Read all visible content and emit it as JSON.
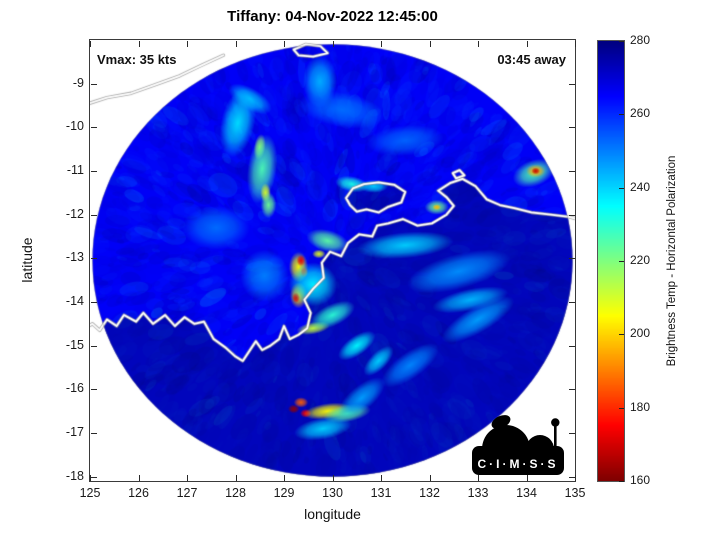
{
  "header": {
    "title": "Tiffany: 04-Nov-2022 12:45:00"
  },
  "annotations": {
    "vmax": "Vmax: 35 kts",
    "eta": "03:45 away"
  },
  "logo": {
    "name": "CIMSS",
    "text": "C·I·M·S·S"
  },
  "chart_data": {
    "type": "heatmap",
    "title": "Tiffany: 04-Nov-2022 12:45:00",
    "xlabel": "longitude",
    "ylabel": "latitude",
    "xlim": [
      125,
      135
    ],
    "ylim": [
      -18.1,
      -8.0
    ],
    "xticks": [
      125,
      126,
      127,
      128,
      129,
      130,
      131,
      132,
      133,
      134,
      135
    ],
    "yticks": [
      -18,
      -17,
      -16,
      -15,
      -14,
      -13,
      -12,
      -11,
      -10,
      -9
    ],
    "grid": false,
    "colorbar": {
      "label": "Brightness Temp - Horizontal Polarization",
      "range": [
        160,
        280
      ],
      "ticks": [
        160,
        180,
        200,
        220,
        240,
        260,
        280
      ],
      "colormap": "jet",
      "position": "right"
    },
    "scan_circle": {
      "center_lon": 130.0,
      "center_lat": -13.05,
      "radius_deg": 4.95
    },
    "background_temp_k": 266,
    "texture": {
      "seed": 42,
      "count": 2600,
      "spread_k": 18,
      "streaks": true
    },
    "feature_format": "[lon, lat, temp_k, rx_deg, ry_deg, rot_deg]",
    "features": [
      [
        128.05,
        -9.9,
        238,
        0.35,
        0.8,
        12
      ],
      [
        128.5,
        -10.45,
        216,
        0.12,
        0.3,
        8
      ],
      [
        128.55,
        -10.95,
        226,
        0.3,
        0.8,
        8
      ],
      [
        128.62,
        -11.5,
        210,
        0.11,
        0.22,
        0
      ],
      [
        128.68,
        -11.78,
        222,
        0.16,
        0.3,
        0
      ],
      [
        128.3,
        -9.35,
        242,
        0.5,
        0.25,
        30
      ],
      [
        129.74,
        -8.95,
        244,
        0.35,
        0.6,
        0
      ],
      [
        130.2,
        -9.6,
        252,
        0.9,
        0.4,
        10
      ],
      [
        131.5,
        -10.3,
        253,
        0.8,
        0.35,
        -5
      ],
      [
        130.4,
        -11.3,
        232,
        0.35,
        0.18,
        10
      ],
      [
        130.85,
        -11.35,
        240,
        0.3,
        0.15,
        0
      ],
      [
        132.15,
        -11.83,
        222,
        0.25,
        0.17,
        0
      ],
      [
        132.15,
        -11.83,
        196,
        0.09,
        0.07,
        0
      ],
      [
        134.15,
        -11.05,
        226,
        0.45,
        0.3,
        -20
      ],
      [
        134.19,
        -11.0,
        195,
        0.2,
        0.15,
        0
      ],
      [
        134.19,
        -11.0,
        168,
        0.09,
        0.08,
        0
      ],
      [
        129.9,
        -12.6,
        224,
        0.45,
        0.25,
        15
      ],
      [
        129.72,
        -12.9,
        208,
        0.14,
        0.1,
        0
      ],
      [
        129.3,
        -13.2,
        205,
        0.2,
        0.35,
        0
      ],
      [
        129.35,
        -13.05,
        172,
        0.09,
        0.13,
        0
      ],
      [
        129.42,
        -13.32,
        182,
        0.08,
        0.12,
        0
      ],
      [
        129.3,
        -13.85,
        200,
        0.18,
        0.3,
        0
      ],
      [
        129.25,
        -13.9,
        170,
        0.08,
        0.12,
        0
      ],
      [
        129.6,
        -13.6,
        236,
        0.5,
        0.5,
        0
      ],
      [
        131.5,
        -12.7,
        240,
        1.0,
        0.3,
        -5
      ],
      [
        132.6,
        -13.3,
        248,
        1.1,
        0.4,
        -15
      ],
      [
        132.84,
        -13.95,
        243,
        0.8,
        0.25,
        -12
      ],
      [
        133.0,
        -14.4,
        246,
        0.85,
        0.3,
        -30
      ],
      [
        129.6,
        -14.6,
        212,
        0.35,
        0.14,
        -10
      ],
      [
        130.0,
        -14.3,
        230,
        0.5,
        0.25,
        -25
      ],
      [
        130.5,
        -15.0,
        235,
        0.45,
        0.22,
        -35
      ],
      [
        130.95,
        -15.35,
        240,
        0.4,
        0.2,
        -45
      ],
      [
        131.6,
        -15.45,
        249,
        0.7,
        0.3,
        -35
      ],
      [
        129.35,
        -16.3,
        186,
        0.15,
        0.12,
        0
      ],
      [
        129.2,
        -16.45,
        162,
        0.12,
        0.1,
        0
      ],
      [
        129.45,
        -16.55,
        174,
        0.12,
        0.1,
        0
      ],
      [
        129.9,
        -16.5,
        205,
        0.5,
        0.18,
        -8
      ],
      [
        130.3,
        -16.55,
        224,
        0.5,
        0.2,
        -10
      ],
      [
        129.8,
        -16.9,
        240,
        0.6,
        0.25,
        -10
      ],
      [
        130.6,
        -16.2,
        246,
        0.6,
        0.28,
        -40
      ],
      [
        128.6,
        -13.4,
        250,
        0.5,
        0.6,
        0
      ],
      [
        127.6,
        -12.3,
        252,
        0.7,
        0.5,
        0
      ]
    ],
    "coastlines": [
      {
        "name": "timor",
        "closed": false,
        "pts": [
          [
            124.85,
            -9.5
          ],
          [
            125.35,
            -9.32
          ],
          [
            125.85,
            -9.22
          ],
          [
            126.35,
            -9.02
          ],
          [
            126.85,
            -8.82
          ],
          [
            127.3,
            -8.58
          ],
          [
            127.75,
            -8.35
          ]
        ]
      },
      {
        "name": "island-top",
        "closed": true,
        "pts": [
          [
            129.2,
            -8.22
          ],
          [
            129.45,
            -8.1
          ],
          [
            129.75,
            -8.14
          ],
          [
            129.9,
            -8.3
          ],
          [
            129.6,
            -8.38
          ],
          [
            129.3,
            -8.35
          ]
        ]
      },
      {
        "name": "tiwi-islands",
        "closed": true,
        "pts": [
          [
            130.28,
            -11.62
          ],
          [
            130.42,
            -11.4
          ],
          [
            130.65,
            -11.3
          ],
          [
            130.95,
            -11.26
          ],
          [
            131.28,
            -11.32
          ],
          [
            131.5,
            -11.48
          ],
          [
            131.42,
            -11.72
          ],
          [
            131.15,
            -11.82
          ],
          [
            130.95,
            -11.95
          ],
          [
            130.7,
            -11.88
          ],
          [
            130.5,
            -11.93
          ],
          [
            130.36,
            -11.78
          ]
        ]
      },
      {
        "name": "croker-island",
        "closed": true,
        "pts": [
          [
            132.48,
            -11.05
          ],
          [
            132.62,
            -10.98
          ],
          [
            132.72,
            -11.1
          ],
          [
            132.55,
            -11.17
          ]
        ]
      },
      {
        "name": "australia-mainland",
        "closed": false,
        "pts": [
          [
            124.82,
            -14.65
          ],
          [
            125.05,
            -14.5
          ],
          [
            125.2,
            -14.65
          ],
          [
            125.35,
            -14.4
          ],
          [
            125.55,
            -14.55
          ],
          [
            125.7,
            -14.3
          ],
          [
            125.95,
            -14.45
          ],
          [
            126.1,
            -14.25
          ],
          [
            126.3,
            -14.5
          ],
          [
            126.55,
            -14.3
          ],
          [
            126.75,
            -14.55
          ],
          [
            126.95,
            -14.35
          ],
          [
            127.15,
            -14.5
          ],
          [
            127.35,
            -14.45
          ],
          [
            127.55,
            -14.85
          ],
          [
            127.8,
            -15.05
          ],
          [
            128.0,
            -15.25
          ],
          [
            128.15,
            -15.35
          ],
          [
            128.3,
            -15.1
          ],
          [
            128.42,
            -14.9
          ],
          [
            128.55,
            -15.1
          ],
          [
            128.72,
            -15.0
          ],
          [
            128.9,
            -14.85
          ],
          [
            129.0,
            -14.55
          ],
          [
            129.12,
            -14.85
          ],
          [
            129.3,
            -14.75
          ],
          [
            129.48,
            -14.6
          ],
          [
            129.55,
            -14.25
          ],
          [
            129.42,
            -13.95
          ],
          [
            129.6,
            -13.7
          ],
          [
            129.82,
            -13.45
          ],
          [
            129.78,
            -13.1
          ],
          [
            129.95,
            -12.85
          ],
          [
            130.18,
            -12.95
          ],
          [
            130.32,
            -12.65
          ],
          [
            130.55,
            -12.45
          ],
          [
            130.82,
            -12.5
          ],
          [
            130.92,
            -12.25
          ],
          [
            131.15,
            -12.2
          ],
          [
            131.45,
            -12.1
          ],
          [
            131.75,
            -12.25
          ],
          [
            132.05,
            -12.2
          ],
          [
            132.35,
            -12.0
          ],
          [
            132.5,
            -11.8
          ],
          [
            132.35,
            -11.6
          ],
          [
            132.18,
            -11.45
          ],
          [
            132.42,
            -11.28
          ],
          [
            132.68,
            -11.18
          ],
          [
            132.95,
            -11.35
          ],
          [
            133.18,
            -11.65
          ],
          [
            133.45,
            -11.78
          ],
          [
            133.75,
            -11.85
          ],
          [
            134.1,
            -11.95
          ],
          [
            134.5,
            -12.0
          ],
          [
            134.88,
            -12.05
          ],
          [
            135.2,
            -12.15
          ]
        ]
      }
    ],
    "land_regions": [
      {
        "coast": "australia-mainland",
        "close": [
          [
            135.3,
            -18.5
          ],
          [
            124.6,
            -18.5
          ]
        ],
        "alpha": 0.45
      },
      {
        "coast": "tiwi-islands",
        "close": [],
        "alpha": 0.4
      }
    ]
  }
}
